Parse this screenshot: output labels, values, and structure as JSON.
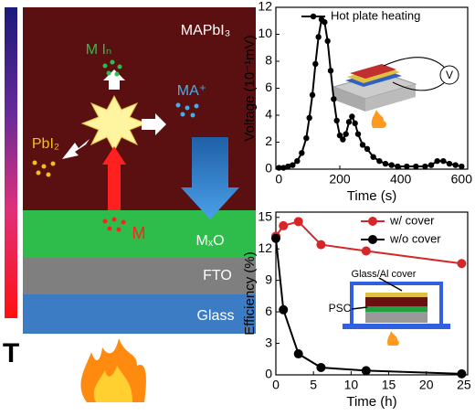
{
  "diagram": {
    "layers": [
      "MAPbI₃",
      "MₓO",
      "FTO",
      "Glass"
    ],
    "products": [
      "M Iₙ",
      "MA⁺",
      "PbI₂",
      "M"
    ],
    "axis_label": "T"
  },
  "chart_data": [
    {
      "type": "line",
      "x_label": "Time (s)",
      "y_label": "Voltage (10⁻¹mV)",
      "x": [
        0,
        15,
        30,
        45,
        60,
        75,
        90,
        100,
        110,
        120,
        130,
        140,
        150,
        160,
        170,
        180,
        190,
        200,
        210,
        220,
        230,
        240,
        250,
        260,
        275,
        290,
        310,
        330,
        350,
        370,
        390,
        420,
        450,
        480,
        500,
        520,
        540,
        560,
        580,
        600
      ],
      "series": [
        {
          "name": "Hot plate heating",
          "color": "#000000",
          "values": [
            0.1,
            0.1,
            0.2,
            0.3,
            0.6,
            1.2,
            2.3,
            3.8,
            5.5,
            7.8,
            9.8,
            11.1,
            10.9,
            9.5,
            7.3,
            5.2,
            3.6,
            2.5,
            2.2,
            2.6,
            3.5,
            3.9,
            3.4,
            2.6,
            1.8,
            1.5,
            0.9,
            0.6,
            0.4,
            0.3,
            0.2,
            0.2,
            0.2,
            0.2,
            0.3,
            0.6,
            0.6,
            0.4,
            0.3,
            0.2
          ]
        }
      ],
      "xlim": [
        -10,
        620
      ],
      "xticks": [
        0,
        200,
        400,
        600
      ],
      "ylim": [
        0,
        12
      ],
      "yticks": [
        0,
        2,
        4,
        6,
        8,
        10,
        12
      ]
    },
    {
      "type": "line",
      "x_label": "Time (h)",
      "y_label": "Efficiency (%)",
      "annotations": [
        "Glass/Al cover",
        "PSC"
      ],
      "x": [
        0,
        1,
        3,
        6,
        12,
        24.7
      ],
      "series": [
        {
          "name": "w/ cover",
          "color": "#d62728",
          "values": [
            13.2,
            14.2,
            14.6,
            12.4,
            11.8,
            10.6
          ]
        },
        {
          "name": "w/o cover",
          "color": "#000000",
          "values": [
            13.0,
            6.2,
            2.0,
            0.7,
            0.4,
            0.1
          ]
        }
      ],
      "xlim": [
        0,
        25.5
      ],
      "xticks": [
        0,
        5,
        10,
        15,
        20,
        25
      ],
      "ylim": [
        0,
        15.5
      ],
      "yticks": [
        0,
        3,
        6,
        9,
        12,
        15
      ]
    }
  ]
}
